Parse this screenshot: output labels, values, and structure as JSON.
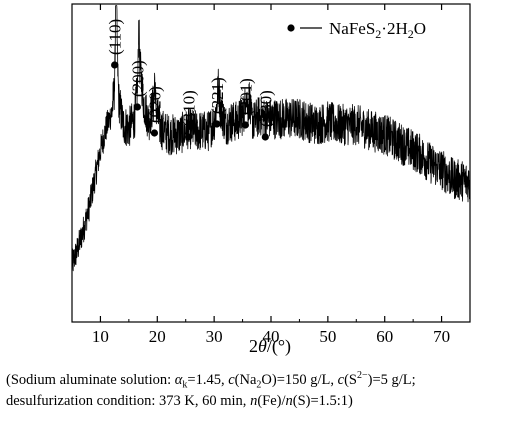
{
  "chart_data": {
    "type": "line",
    "title": "",
    "xlabel": "2θ/(°)",
    "ylabel": "",
    "xlim": [
      5,
      75
    ],
    "xticks": [
      10,
      20,
      30,
      40,
      50,
      60,
      70
    ],
    "y_ticks_shown": false,
    "grid": false,
    "legend": {
      "placement": "top-right",
      "marker": "filled-circle",
      "entries": [
        "NaFeS2·2H2O"
      ]
    },
    "series": [
      {
        "name": "NaFeS2·2H2O",
        "color": "#000000",
        "x": [
          5,
          6,
          7,
          8,
          9,
          10,
          11,
          12,
          12.5,
          12.8,
          13.2,
          14,
          15,
          16,
          16.7,
          17,
          17.6,
          18.5,
          19.5,
          20.5,
          22,
          24,
          25.5,
          27,
          29,
          30,
          30.7,
          31.3,
          32,
          33,
          34,
          35,
          35.8,
          36.5,
          37,
          38,
          39,
          40,
          42,
          45,
          48,
          50,
          52,
          55,
          58,
          60,
          62,
          64,
          66,
          68,
          70,
          72,
          75
        ],
        "values": [
          0.18,
          0.23,
          0.29,
          0.36,
          0.45,
          0.54,
          0.61,
          0.66,
          0.74,
          0.96,
          0.7,
          0.62,
          0.61,
          0.64,
          0.77,
          0.8,
          0.69,
          0.63,
          0.7,
          0.61,
          0.59,
          0.59,
          0.61,
          0.6,
          0.6,
          0.63,
          0.69,
          0.66,
          0.62,
          0.63,
          0.63,
          0.65,
          0.68,
          0.64,
          0.63,
          0.65,
          0.64,
          0.64,
          0.64,
          0.64,
          0.62,
          0.63,
          0.62,
          0.62,
          0.6,
          0.59,
          0.57,
          0.55,
          0.53,
          0.5,
          0.48,
          0.45,
          0.44
        ]
      }
    ],
    "peaks": [
      {
        "label": "(110)",
        "x": 12.5
      },
      {
        "label": "(200)",
        "x": 16.5
      },
      {
        "label": "(020)",
        "x": 19.5
      },
      {
        "label": "(310)",
        "x": 25.5
      },
      {
        "label": "(221)",
        "x": 30.5
      },
      {
        "label": "(201)",
        "label_overline": "2",
        "x": 35.5
      },
      {
        "label": "(330)",
        "x": 39.0
      }
    ]
  },
  "caption": {
    "line1": "(Sodium aluminate solution: αk=1.45, c(Na2O)=150 g/L, c(S2−)=5 g/L;",
    "line2": "desulfurization condition: 373 K, 60 min, n(Fe)/n(S)=1.5:1)"
  }
}
